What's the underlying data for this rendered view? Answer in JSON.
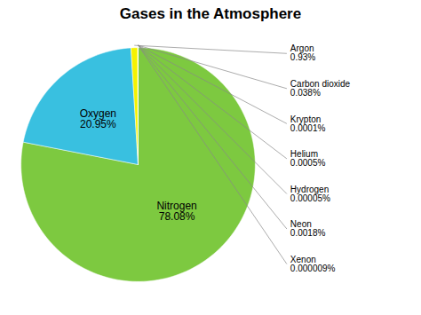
{
  "chart_data": {
    "type": "pie",
    "title": "Gases in the Atmosphere",
    "categories": [
      "Nitrogen",
      "Oxygen",
      "Argon",
      "Carbon dioxide",
      "Krypton",
      "Helium",
      "Hydrogen",
      "Neon",
      "Xenon"
    ],
    "values": [
      78.08,
      20.95,
      0.93,
      0.038,
      0.0001,
      0.0005,
      5e-05,
      0.0018,
      9e-06
    ],
    "value_labels": [
      "78.08%",
      "20.95%",
      "0.93%",
      "0.038%",
      "0.0001%",
      "0.0005%",
      "0.00005%",
      "0.0018%",
      "0.000009%"
    ],
    "colors": [
      "#7dc940",
      "#39c0e0",
      "#f5f200",
      "#7dc940",
      "#7dc940",
      "#7dc940",
      "#7dc940",
      "#7dc940",
      "#7dc940"
    ],
    "data_labels": true
  }
}
